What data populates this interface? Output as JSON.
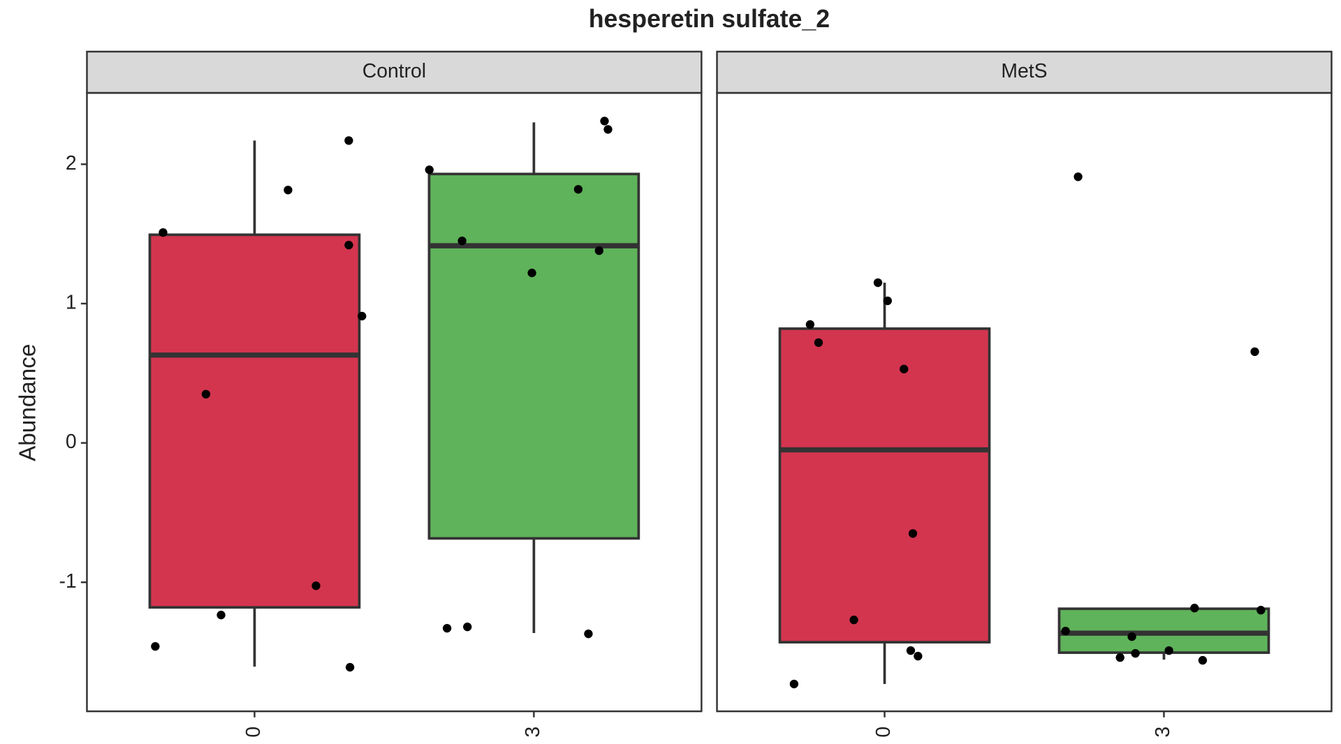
{
  "chart_data": {
    "type": "box",
    "title": "hesperetin sulfate_2",
    "y_label": "Abundance",
    "ylim": [
      -1.926,
      2.512
    ],
    "yticks": [
      -1,
      0,
      1,
      2
    ],
    "categories": [
      "0",
      "3"
    ],
    "colors": [
      "#d3354f",
      "#5fb35a"
    ],
    "panels": [
      {
        "name": "Control",
        "boxes": [
          {
            "min": -1.605,
            "q1": -1.18,
            "median": 0.63,
            "q3": 1.494,
            "max": 2.17,
            "points": [
              2.17,
              1.815,
              1.51,
              1.42,
              0.91,
              0.35,
              -1.025,
              -1.235,
              -1.46,
              -1.61
            ]
          },
          {
            "min": -1.364,
            "q1": -0.685,
            "median": 1.415,
            "q3": 1.93,
            "max": 2.3,
            "points": [
              2.31,
              2.25,
              1.96,
              1.82,
              1.45,
              1.38,
              1.22,
              -1.32,
              -1.33,
              -1.37
            ]
          }
        ]
      },
      {
        "name": "MetS",
        "boxes": [
          {
            "min": -1.73,
            "q1": -1.43,
            "median": -0.05,
            "q3": 0.82,
            "max": 1.15,
            "points": [
              1.15,
              1.02,
              0.85,
              0.72,
              0.53,
              -0.65,
              -1.27,
              -1.49,
              -1.53,
              -1.73
            ]
          },
          {
            "min": -1.555,
            "q1": -1.505,
            "median": -1.365,
            "q3": -1.19,
            "max": -1.19,
            "points": [
              1.91,
              0.655,
              -1.2,
              -1.185,
              -1.35,
              -1.39,
              -1.49,
              -1.51,
              -1.54,
              -1.56
            ]
          }
        ]
      }
    ]
  }
}
